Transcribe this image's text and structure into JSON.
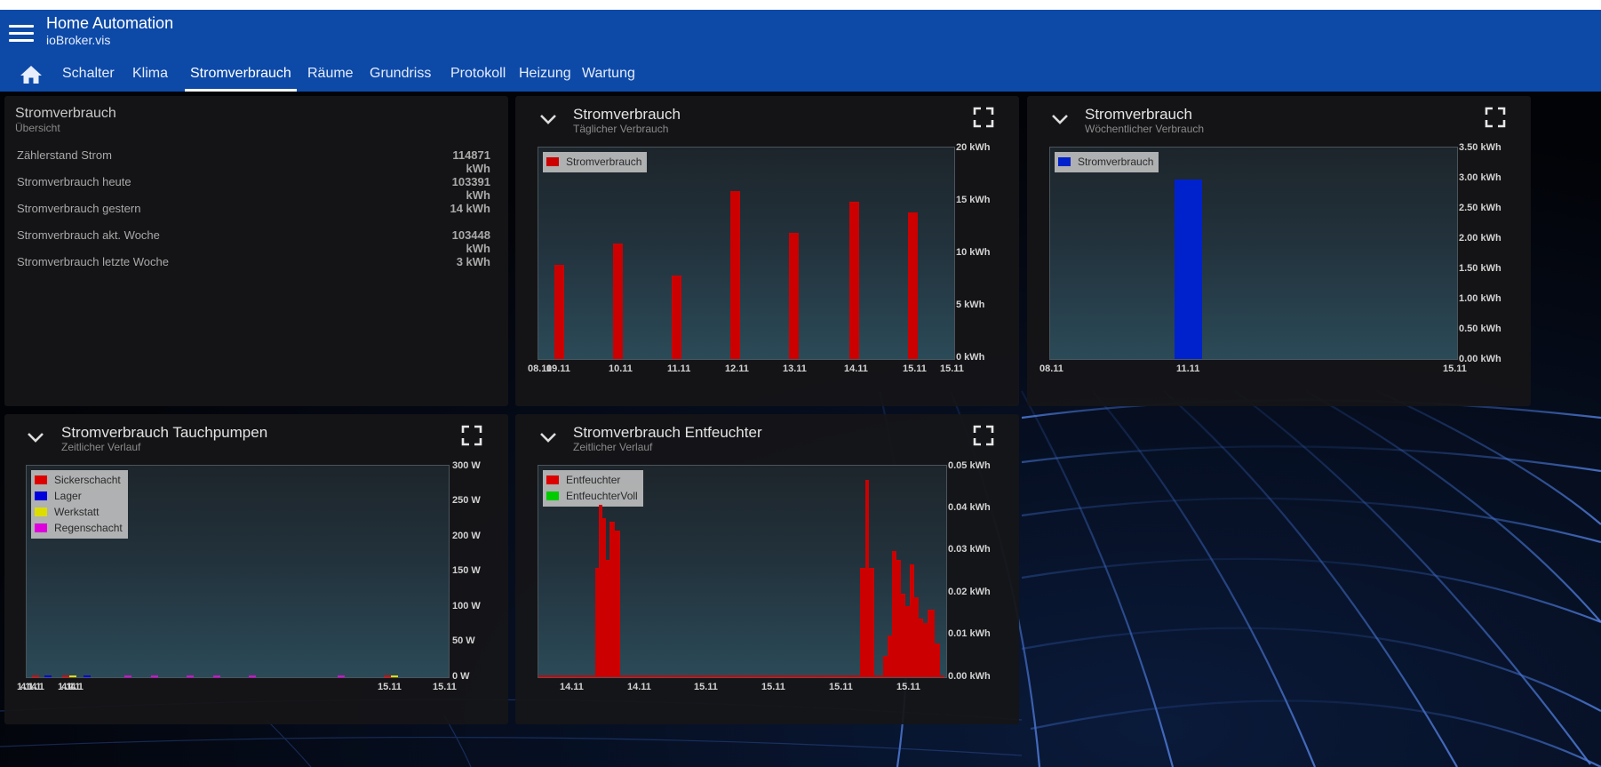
{
  "header": {
    "title": "Home Automation",
    "subtitle": "ioBroker.vis",
    "tabs": [
      "Schalter",
      "Klima",
      "Stromverbrauch",
      "Räume",
      "Grundriss",
      "Protokoll",
      "Heizung",
      "Wartung"
    ],
    "active_tab": "Stromverbrauch"
  },
  "summary": {
    "title": "Stromverbrauch",
    "subtitle": "Übersicht",
    "rows": [
      {
        "label": "Zählerstand Strom",
        "value_line1": "114871",
        "value_line2": "kWh"
      },
      {
        "label": "Stromverbrauch heute",
        "value_line1": "103391",
        "value_line2": "kWh"
      },
      {
        "label": "Stromverbrauch gestern",
        "value_line1": "14 kWh",
        "value_line2": ""
      },
      {
        "label": "Stromverbrauch akt. Woche",
        "value_line1": "103448",
        "value_line2": "kWh"
      },
      {
        "label": "Stromverbrauch letzte Woche",
        "value_line1": "3 kWh",
        "value_line2": ""
      }
    ]
  },
  "daily": {
    "title": "Stromverbrauch",
    "subtitle": "Täglicher Verbrauch",
    "legend": [
      {
        "name": "Stromverbrauch",
        "color": "#cc0000"
      }
    ]
  },
  "weekly": {
    "title": "Stromverbrauch",
    "subtitle": "Wöchentlicher Verbrauch",
    "legend": [
      {
        "name": "Stromverbrauch",
        "color": "#0022cc"
      }
    ]
  },
  "pumps": {
    "title": "Stromverbrauch Tauchpumpen",
    "subtitle": "Zeitlicher Verlauf",
    "legend": [
      {
        "name": "Sickerschacht",
        "color": "#dd0000"
      },
      {
        "name": "Lager",
        "color": "#0000dd"
      },
      {
        "name": "Werkstatt",
        "color": "#dddd00"
      },
      {
        "name": "Regenschacht",
        "color": "#dd00dd"
      }
    ]
  },
  "dehum": {
    "title": "Stromverbrauch Entfeuchter",
    "subtitle": "Zeitlicher Verlauf",
    "legend": [
      {
        "name": "Entfeuchter",
        "color": "#dd0000"
      },
      {
        "name": "EntfeuchterVoll",
        "color": "#00cc00"
      }
    ]
  },
  "chart_data": [
    {
      "type": "bar",
      "x_ticks": [
        "08.11",
        "09.11",
        "10.11",
        "11.11",
        "12.11",
        "13.11",
        "14.11",
        "15.11",
        "15.11"
      ],
      "y_ticks": [
        "20 kWh",
        "15 kWh",
        "10 kWh",
        "5 kWh",
        "0 kWh"
      ],
      "ylim": [
        0,
        20
      ],
      "categories": [
        "09.11",
        "10.11",
        "11.11",
        "12.11",
        "13.11",
        "14.11",
        "15.11"
      ],
      "series": [
        {
          "name": "Stromverbrauch",
          "values": [
            9,
            11,
            8,
            16,
            12,
            15,
            14
          ]
        }
      ]
    },
    {
      "type": "bar",
      "x_ticks": [
        "08.11",
        "11.11",
        "15.11"
      ],
      "y_ticks": [
        "3.50 kWh",
        "3.00 kWh",
        "2.50 kWh",
        "2.00 kWh",
        "1.50 kWh",
        "1.00 kWh",
        "0.50 kWh",
        "0.00 kWh"
      ],
      "ylim": [
        0,
        3.5
      ],
      "categories": [
        "11.11"
      ],
      "series": [
        {
          "name": "Stromverbrauch",
          "values": [
            3
          ]
        }
      ]
    },
    {
      "type": "line",
      "x_ticks": [
        "14.11",
        "14.11",
        "14.11",
        "14.11",
        "15.11",
        "15.11"
      ],
      "y_ticks": [
        "300 W",
        "250 W",
        "200 W",
        "150 W",
        "100 W",
        "50 W",
        "0 W"
      ],
      "ylim": [
        0,
        300
      ],
      "series": [
        {
          "name": "Sickerschacht",
          "values": [
            0,
            0,
            0,
            0,
            0,
            0
          ]
        },
        {
          "name": "Lager",
          "values": [
            0,
            0,
            0,
            0,
            0,
            0
          ]
        },
        {
          "name": "Werkstatt",
          "values": [
            0,
            0,
            0,
            0,
            0,
            0
          ]
        },
        {
          "name": "Regenschacht",
          "values": [
            0,
            0,
            0,
            0,
            0,
            0
          ]
        }
      ]
    },
    {
      "type": "area",
      "x_ticks": [
        "14.11",
        "14.11",
        "15.11",
        "15.11",
        "15.11",
        "15.11"
      ],
      "y_ticks": [
        "0.05 kWh",
        "0.04 kWh",
        "0.03 kWh",
        "0.02 kWh",
        "0.01 kWh",
        "0.00 kWh"
      ],
      "ylim": [
        0,
        0.05
      ],
      "series": [
        {
          "name": "Entfeuchter",
          "values": [
            0.0,
            0.0,
            0.026,
            0.041,
            0.038,
            0.028,
            0.037,
            0.035,
            0.0,
            0.0,
            0.0,
            0.0,
            0.0,
            0.0,
            0.0,
            0.026,
            0.047,
            0.026,
            0.0,
            0.005,
            0.01,
            0.03,
            0.028,
            0.02,
            0.017,
            0.027,
            0.019,
            0.014,
            0.013,
            0.016,
            0.008
          ]
        },
        {
          "name": "EntfeuchterVoll",
          "values": []
        }
      ]
    }
  ]
}
